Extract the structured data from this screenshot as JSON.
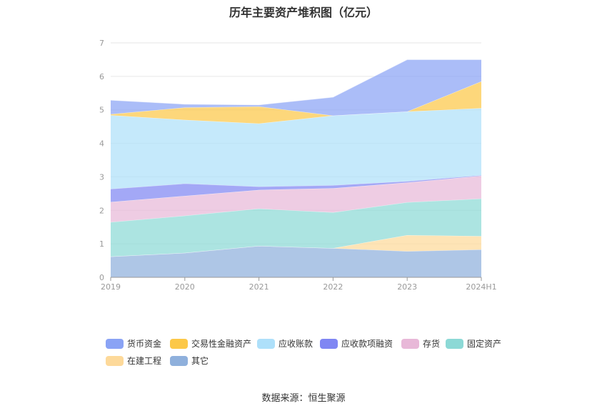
{
  "chart_data": {
    "type": "area",
    "stacked": true,
    "title": "历年主要资产堆积图（亿元）",
    "x": [
      "2019",
      "2020",
      "2021",
      "2022",
      "2023",
      "2024H1"
    ],
    "ylim": [
      0,
      7
    ],
    "yticks": [
      "0",
      "1",
      "2",
      "3",
      "4",
      "5",
      "6",
      "7"
    ],
    "grid": true,
    "legend_position": "bottom",
    "series": [
      {
        "name": "其它",
        "color": "#8fb0dc",
        "values": [
          0.62,
          0.73,
          0.94,
          0.87,
          0.78,
          0.83
        ]
      },
      {
        "name": "在建工程",
        "color": "#fdd99a",
        "values": [
          0.0,
          0.0,
          0.0,
          0.0,
          0.48,
          0.4
        ]
      },
      {
        "name": "固定资产",
        "color": "#8cd9d6",
        "values": [
          1.03,
          1.11,
          1.11,
          1.07,
          0.98,
          1.12
        ]
      },
      {
        "name": "存货",
        "color": "#e8b8d8",
        "values": [
          0.6,
          0.59,
          0.56,
          0.72,
          0.59,
          0.68
        ]
      },
      {
        "name": "应收款项融资",
        "color": "#7f86f3",
        "values": [
          0.39,
          0.37,
          0.1,
          0.09,
          0.04,
          0.02
        ]
      },
      {
        "name": "应收账款",
        "color": "#aee0fa",
        "values": [
          2.2,
          1.9,
          1.88,
          2.08,
          2.08,
          2.0
        ]
      },
      {
        "name": "交易性金融资产",
        "color": "#fcc848",
        "values": [
          0.03,
          0.37,
          0.51,
          0.0,
          0.0,
          0.8
        ]
      },
      {
        "name": "货币资金",
        "color": "#8aa3f5",
        "values": [
          0.42,
          0.1,
          0.05,
          0.55,
          1.55,
          0.65
        ]
      }
    ],
    "legend_order": [
      "货币资金",
      "交易性金融资产",
      "应收账款",
      "应收款项融资",
      "存货",
      "固定资产",
      "在建工程",
      "其它"
    ]
  },
  "source_text": "数据来源：恒生聚源"
}
